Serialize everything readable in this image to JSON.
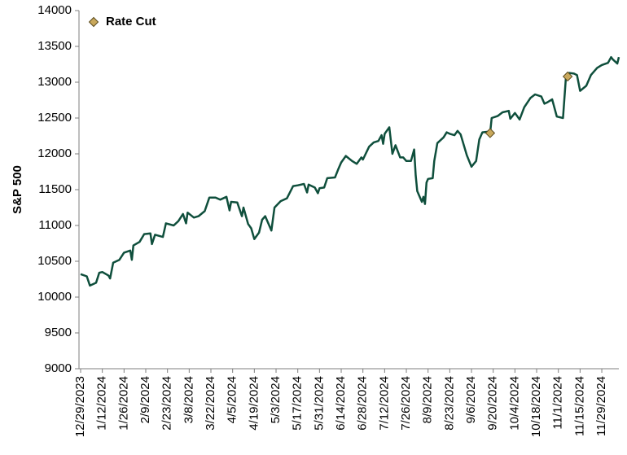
{
  "chart_data": {
    "type": "line",
    "ylabel": "S&P 500",
    "ylim": [
      9000,
      14000
    ],
    "yticks": [
      9000,
      9500,
      10000,
      10500,
      11000,
      11500,
      12000,
      12500,
      13000,
      13500,
      14000
    ],
    "xlim": [
      "12/29/2023",
      "12/10/2024"
    ],
    "xticks": [
      "12/29/2023",
      "1/12/2024",
      "1/26/2024",
      "2/9/2024",
      "2/23/2024",
      "3/8/2024",
      "3/22/2024",
      "4/5/2024",
      "4/19/2024",
      "5/3/2024",
      "5/17/2024",
      "5/31/2024",
      "6/14/2024",
      "6/28/2024",
      "7/12/2024",
      "7/26/2024",
      "8/9/2024",
      "8/23/2024",
      "9/6/2024",
      "9/20/2024",
      "10/4/2024",
      "10/18/2024",
      "11/1/2024",
      "11/15/2024",
      "11/29/2024"
    ],
    "legend": "top-left",
    "grid": false,
    "series": [
      {
        "type": "line",
        "color": "#0f4f3c",
        "x": [
          "12/29/2023",
          "1/2/2024",
          "1/4/2024",
          "1/8/2024",
          "1/10/2024",
          "1/12/2024",
          "1/16/2024",
          "1/17/2024",
          "1/19/2024",
          "1/23/2024",
          "1/26/2024",
          "1/30/2024",
          "1/31/2024",
          "2/1/2024",
          "2/5/2024",
          "2/8/2024",
          "2/12/2024",
          "2/13/2024",
          "2/15/2024",
          "2/20/2024",
          "2/22/2024",
          "2/27/2024",
          "3/1/2024",
          "3/4/2024",
          "3/6/2024",
          "3/7/2024",
          "3/11/2024",
          "3/14/2024",
          "3/18/2024",
          "3/21/2024",
          "3/25/2024",
          "3/28/2024",
          "4/1/2024",
          "4/3/2024",
          "4/4/2024",
          "4/8/2024",
          "4/11/2024",
          "4/12/2024",
          "4/15/2024",
          "4/17/2024",
          "4/19/2024",
          "4/22/2024",
          "4/24/2024",
          "4/26/2024",
          "4/30/2024",
          "5/2/2024",
          "5/6/2024",
          "5/10/2024",
          "5/14/2024",
          "5/17/2024",
          "5/21/2024",
          "5/23/2024",
          "5/24/2024",
          "5/28/2024",
          "5/30/2024",
          "5/31/2024",
          "6/3/2024",
          "6/5/2024",
          "6/10/2024",
          "6/12/2024",
          "6/14/2024",
          "6/17/2024",
          "6/21/2024",
          "6/24/2024",
          "6/27/2024",
          "6/28/2024",
          "7/2/2024",
          "7/5/2024",
          "7/8/2024",
          "7/10/2024",
          "7/11/2024",
          "7/12/2024",
          "7/15/2024",
          "7/17/2024",
          "7/19/2024",
          "7/22/2024",
          "7/24/2024",
          "7/26/2024",
          "7/29/2024",
          "7/31/2024",
          "8/1/2024",
          "8/2/2024",
          "8/5/2024",
          "8/6/2024",
          "8/7/2024",
          "8/8/2024",
          "8/9/2024",
          "8/12/2024",
          "8/13/2024",
          "8/15/2024",
          "8/19/2024",
          "8/21/2024",
          "8/23/2024",
          "8/26/2024",
          "8/28/2024",
          "8/30/2024",
          "9/3/2024",
          "9/6/2024",
          "9/9/2024",
          "9/11/2024",
          "9/13/2024",
          "9/17/2024",
          "9/18/2024",
          "9/19/2024",
          "9/23/2024",
          "9/26/2024",
          "9/30/2024",
          "10/1/2024",
          "10/4/2024",
          "10/7/2024",
          "10/10/2024",
          "10/14/2024",
          "10/17/2024",
          "10/21/2024",
          "10/23/2024",
          "10/25/2024",
          "10/28/2024",
          "10/31/2024",
          "11/4/2024",
          "11/6/2024",
          "11/7/2024",
          "11/8/2024",
          "11/11/2024",
          "11/13/2024",
          "11/15/2024",
          "11/19/2024",
          "11/22/2024",
          "11/26/2024",
          "11/29/2024",
          "12/3/2024",
          "12/5/2024",
          "12/6/2024",
          "12/9/2024",
          "12/10/2024"
        ],
        "values": [
          10320,
          10290,
          10160,
          10200,
          10340,
          10350,
          10300,
          10260,
          10480,
          10520,
          10620,
          10650,
          10520,
          10720,
          10770,
          10880,
          10890,
          10740,
          10870,
          10840,
          11030,
          11000,
          11060,
          11160,
          11030,
          11180,
          11110,
          11130,
          11200,
          11390,
          11390,
          11360,
          11400,
          11210,
          11330,
          11320,
          11130,
          11250,
          11020,
          10960,
          10810,
          10900,
          11080,
          11130,
          10930,
          11250,
          11340,
          11380,
          11550,
          11560,
          11580,
          11460,
          11570,
          11530,
          11450,
          11520,
          11530,
          11660,
          11670,
          11780,
          11880,
          11970,
          11900,
          11860,
          11950,
          11920,
          12100,
          12160,
          12180,
          12260,
          12140,
          12280,
          12370,
          12000,
          12120,
          11950,
          11950,
          11900,
          11900,
          12060,
          11700,
          11480,
          11330,
          11400,
          11300,
          11600,
          11650,
          11660,
          11900,
          12150,
          12230,
          12300,
          12280,
          12260,
          12320,
          12270,
          11980,
          11820,
          11900,
          12200,
          12300,
          12310,
          12290,
          12500,
          12530,
          12580,
          12600,
          12490,
          12570,
          12480,
          12650,
          12780,
          12830,
          12800,
          12700,
          12720,
          12760,
          12520,
          12500,
          13100,
          13080,
          13130,
          13120,
          13100,
          12880,
          12950,
          13100,
          13200,
          13240,
          13270,
          13350,
          13320,
          13260,
          13350
        ]
      },
      {
        "type": "scatter",
        "name": "Rate Cut",
        "color": "#c9a85c",
        "x": [
          "9/18/2024",
          "11/7/2024"
        ],
        "values": [
          12290,
          13080
        ]
      }
    ]
  }
}
